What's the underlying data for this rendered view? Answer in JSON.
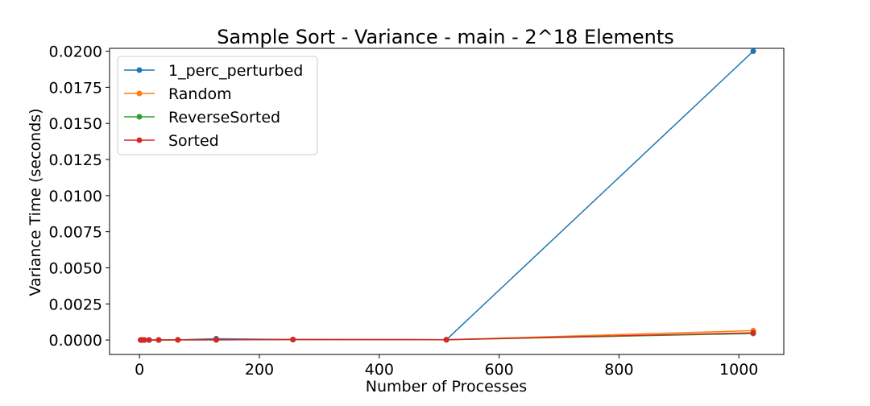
{
  "chart_data": {
    "type": "line",
    "title": "Sample Sort - Variance - main - 2^18 Elements",
    "xlabel": "Number of Processes",
    "ylabel": "Variance Time (seconds)",
    "xlim": [
      -50,
      1075
    ],
    "ylim": [
      -0.001,
      0.0202
    ],
    "x_ticks": [
      0,
      200,
      400,
      600,
      800,
      1000
    ],
    "x_tick_labels": [
      "0",
      "200",
      "400",
      "600",
      "800",
      "1000"
    ],
    "y_ticks": [
      0.0,
      0.0025,
      0.005,
      0.0075,
      0.01,
      0.0125,
      0.015,
      0.0175,
      0.02
    ],
    "y_tick_labels": [
      "0.0000",
      "0.0025",
      "0.0050",
      "0.0075",
      "0.0100",
      "0.0125",
      "0.0150",
      "0.0175",
      "0.0200"
    ],
    "grid": false,
    "legend_position": "top-left",
    "x": [
      2,
      4,
      8,
      16,
      32,
      64,
      128,
      256,
      512,
      1024
    ],
    "series": [
      {
        "name": "1_perc_perturbed",
        "color": "#1f77b4",
        "values": [
          0.0,
          0.0,
          0.0,
          0.0,
          5e-06,
          1e-05,
          9e-05,
          3e-05,
          2e-05,
          0.02
        ]
      },
      {
        "name": "Random",
        "color": "#ff7f0e",
        "values": [
          0.0,
          0.0,
          0.0,
          0.0,
          5e-06,
          1e-05,
          1e-05,
          3e-05,
          2e-05,
          0.00065
        ]
      },
      {
        "name": "ReverseSorted",
        "color": "#2ca02c",
        "values": [
          0.0,
          0.0,
          0.0,
          0.0,
          5e-06,
          1e-05,
          1e-05,
          3e-05,
          2e-05,
          0.00045
        ]
      },
      {
        "name": "Sorted",
        "color": "#d62728",
        "values": [
          0.0,
          0.0,
          0.0,
          0.0,
          5e-06,
          1e-05,
          1e-05,
          3e-05,
          2e-05,
          0.0005
        ]
      }
    ]
  }
}
